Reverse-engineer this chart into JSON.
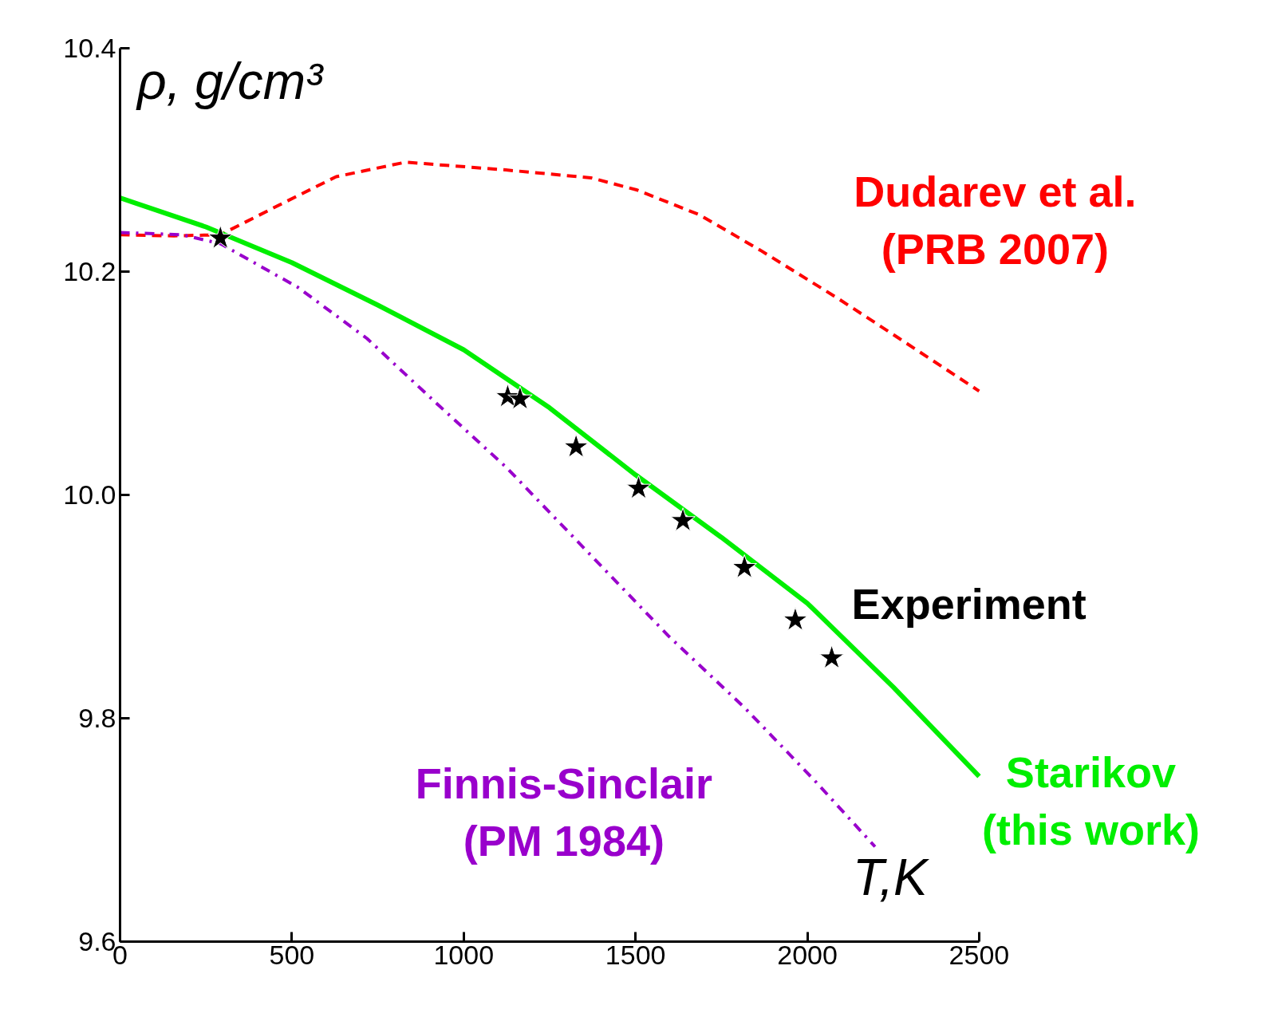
{
  "chart_data": {
    "type": "line",
    "xlabel": "T,K",
    "ylabel": "ρ, g/cm³",
    "xlim": [
      0,
      2500
    ],
    "ylim": [
      9.6,
      10.4
    ],
    "xticks": [
      0,
      500,
      1000,
      1500,
      2000,
      2500
    ],
    "yticks": [
      9.6,
      9.8,
      {
        "value": 10,
        "label": "10.0"
      },
      10.2,
      10.4
    ],
    "grid": false,
    "series": [
      {
        "name": "Dudarev et al.\n(PRB 2007)",
        "color": "#ff0000",
        "line_style": "dashed",
        "x": [
          0,
          157,
          292,
          472,
          629,
          831,
          1123,
          1370,
          1505,
          1685,
          1864,
          2089,
          2268,
          2500
        ],
        "values": [
          10.233,
          10.232,
          10.233,
          10.261,
          10.285,
          10.298,
          10.291,
          10.284,
          10.273,
          10.251,
          10.219,
          10.176,
          10.14,
          10.093
        ]
      },
      {
        "name": "Starikov\n(this work)",
        "color": "#00ee00",
        "line_style": "solid",
        "x": [
          0,
          250,
          500,
          750,
          1000,
          1250,
          1500,
          1750,
          2000,
          2250,
          2500
        ],
        "values": [
          10.266,
          10.24,
          10.208,
          10.17,
          10.13,
          10.078,
          10.018,
          9.962,
          9.903,
          9.828,
          9.748
        ]
      },
      {
        "name": "Finnis-Sinclair\n(PM 1984)",
        "color": "#9900cc",
        "line_style": "dashdot",
        "x": [
          0,
          180,
          292,
          517,
          719,
          921,
          1123,
          1370,
          1595,
          1819,
          2022,
          2197
        ],
        "values": [
          10.235,
          10.233,
          10.225,
          10.186,
          10.14,
          10.082,
          10.025,
          9.946,
          9.874,
          9.809,
          9.744,
          9.685
        ]
      },
      {
        "name": "Experiment",
        "type": "scatter",
        "marker": "star",
        "color": "#000000",
        "x": [
          292,
          1128,
          1164,
          1327,
          1509,
          1638,
          1817,
          1965,
          2071
        ],
        "values": [
          10.23,
          10.088,
          10.086,
          10.043,
          10.006,
          9.977,
          9.935,
          9.888,
          9.854
        ]
      }
    ]
  }
}
